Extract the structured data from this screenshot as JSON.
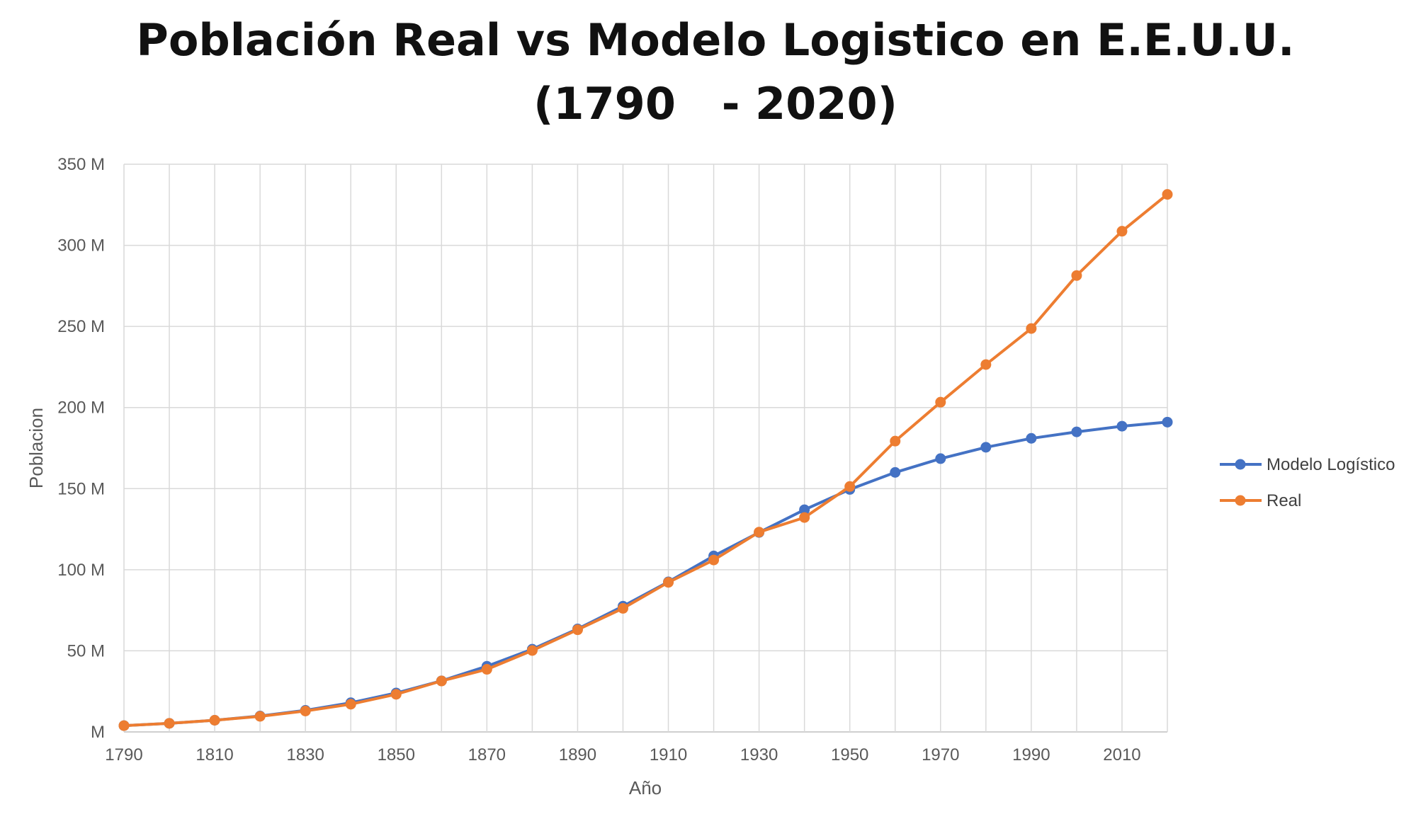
{
  "chart_data": {
    "type": "line",
    "title_line1": "Población Real vs Modelo Logistico en E.E.U.U.",
    "title_line2": "(1790   - 2020)",
    "xlabel": "Año",
    "ylabel": "Poblacion",
    "xlim": [
      1790,
      2020
    ],
    "ylim": [
      0,
      350000000
    ],
    "x_ticks": [
      1790,
      1810,
      1830,
      1850,
      1870,
      1890,
      1910,
      1930,
      1950,
      1970,
      1990,
      2010
    ],
    "y_tick_values": [
      0,
      50000000,
      100000000,
      150000000,
      200000000,
      250000000,
      300000000,
      350000000
    ],
    "y_tick_labels": [
      "M",
      "50 M",
      "100 M",
      "150 M",
      "200 M",
      "250 M",
      "300 M",
      "350 M"
    ],
    "grid": true,
    "legend_position": "right",
    "x": [
      1790,
      1800,
      1810,
      1820,
      1830,
      1840,
      1850,
      1860,
      1870,
      1880,
      1890,
      1900,
      1910,
      1920,
      1930,
      1940,
      1950,
      1960,
      1970,
      1980,
      1990,
      2000,
      2010,
      2020
    ],
    "series": [
      {
        "name": "Modelo Logístico",
        "color": "#4472C4",
        "values": [
          3900000,
          5300000,
          7200000,
          9800000,
          13300000,
          18000000,
          24000000,
          31500000,
          40500000,
          51000000,
          63500000,
          77500000,
          92500000,
          108500000,
          123000000,
          137000000,
          149500000,
          160000000,
          168500000,
          175500000,
          181000000,
          185000000,
          188500000,
          191000000
        ]
      },
      {
        "name": "Real",
        "color": "#ED7D31",
        "values": [
          3900000,
          5300000,
          7200000,
          9600000,
          12900000,
          17100000,
          23200000,
          31400000,
          38600000,
          50200000,
          63000000,
          76200000,
          92200000,
          106000000,
          123200000,
          132200000,
          151300000,
          179300000,
          203300000,
          226500000,
          248700000,
          281400000,
          308700000,
          331400000
        ]
      }
    ]
  }
}
